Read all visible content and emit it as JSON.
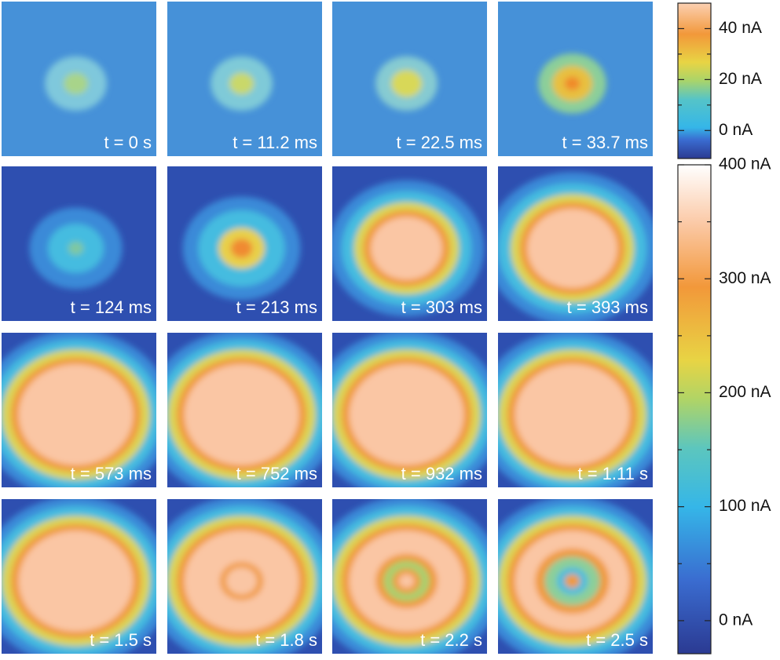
{
  "chart_data": {
    "type": "heatmap-grid",
    "panels": [
      {
        "label": "t = 0 s"
      },
      {
        "label": "t = 11.2 ms"
      },
      {
        "label": "t = 22.5 ms"
      },
      {
        "label": "t = 33.7 ms"
      },
      {
        "label": "t = 124 ms"
      },
      {
        "label": "t = 213 ms"
      },
      {
        "label": "t = 303 ms"
      },
      {
        "label": "t = 393 ms"
      },
      {
        "label": "t = 573 ms"
      },
      {
        "label": "t = 752 ms"
      },
      {
        "label": "t = 932 ms"
      },
      {
        "label": "t = 1.11 s"
      },
      {
        "label": "t = 1.5 s"
      },
      {
        "label": "t = 1.8 s"
      },
      {
        "label": "t = 2.2 s"
      },
      {
        "label": "t = 2.5 s"
      }
    ],
    "colorbars": [
      {
        "lim": [
          -11,
          50
        ],
        "ticks": [
          {
            "value": 0,
            "label": "0 nA"
          },
          {
            "value": 20,
            "label": "20 nA"
          },
          {
            "value": 40,
            "label": "40 nA"
          }
        ],
        "minor_ticks": [
          10,
          30
        ]
      },
      {
        "lim": [
          -29,
          400
        ],
        "ticks": [
          {
            "value": 0,
            "label": "0 nA"
          },
          {
            "value": 100,
            "label": "100 nA"
          },
          {
            "value": 200,
            "label": "200 nA"
          },
          {
            "value": 300,
            "label": "300 nA"
          },
          {
            "value": 400,
            "label": "400 nA"
          }
        ],
        "minor_ticks": [
          50,
          150,
          250,
          350
        ]
      }
    ]
  }
}
